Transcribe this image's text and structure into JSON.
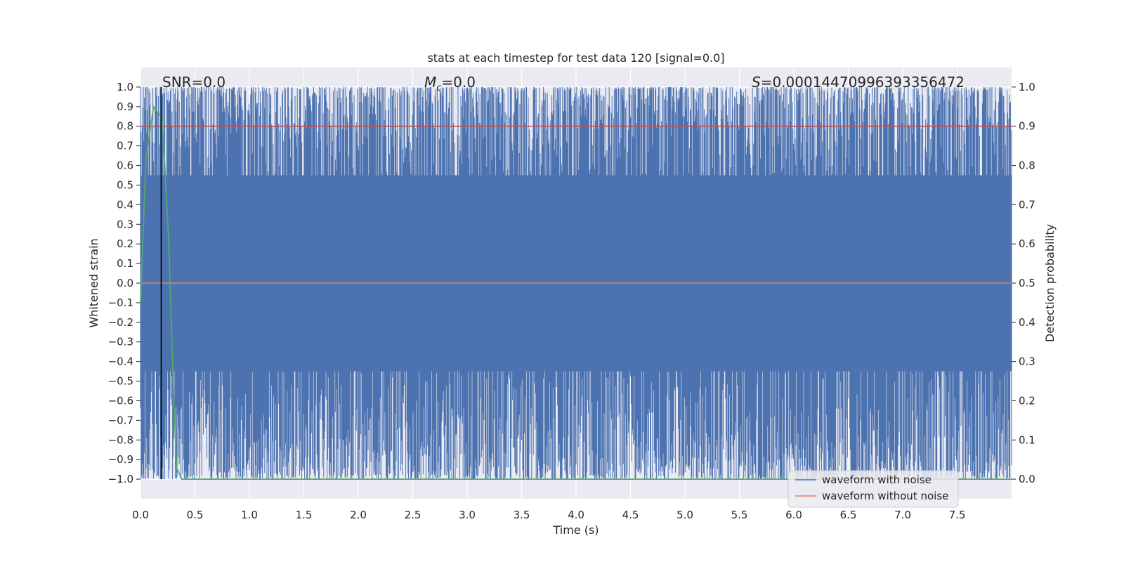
{
  "chart_data": {
    "type": "line",
    "title": "stats at each timestep for test data 120 [signal=0.0]",
    "xlabel": "Time (s)",
    "ylabel": "Whitened strain",
    "y2label": "Detection probability",
    "xlim": [
      0.0,
      8.0
    ],
    "ylim": [
      -1.1,
      1.1
    ],
    "y2lim": [
      -0.05,
      1.05
    ],
    "x_ticks": [
      "0.0",
      "0.5",
      "1.0",
      "1.5",
      "2.0",
      "2.5",
      "3.0",
      "3.5",
      "4.0",
      "4.5",
      "5.0",
      "5.5",
      "6.0",
      "6.5",
      "7.0",
      "7.5"
    ],
    "y_ticks": [
      "1.0",
      "0.9",
      "0.8",
      "0.7",
      "0.6",
      "0.5",
      "0.4",
      "0.3",
      "0.2",
      "0.1",
      "0.0",
      "−0.1",
      "−0.2",
      "−0.3",
      "−0.4",
      "−0.5",
      "−0.6",
      "−0.7",
      "−0.8",
      "−0.9",
      "−1.0"
    ],
    "y2_ticks": [
      "1.0",
      "0.9",
      "0.8",
      "0.7",
      "0.6",
      "0.5",
      "0.4",
      "0.3",
      "0.2",
      "0.1",
      "0.0"
    ],
    "grid": true,
    "legend_position": "lower-right",
    "annotations": {
      "snr": "SNR=0.0",
      "mc_symbol": "M",
      "mc_sub": "c",
      "mc_value": "=0.0",
      "s_symbol": "S",
      "s_value": "=0.00014470996393356472"
    },
    "marker_line_x": 0.19,
    "threshold_probability": 0.9,
    "series": [
      {
        "name": "waveform with noise",
        "color": "#4c72b0",
        "axis": "left",
        "range": [
          -1.0,
          1.0
        ]
      },
      {
        "name": "waveform without noise",
        "color": "#dd8452",
        "axis": "left",
        "values": [
          [
            0.0,
            0.0
          ],
          [
            8.0,
            0.0
          ]
        ]
      },
      {
        "color": "#55a868",
        "axis": "right",
        "values": [
          [
            0.0,
            0.45
          ],
          [
            0.05,
            0.82
          ],
          [
            0.12,
            0.95
          ],
          [
            0.2,
            0.92
          ],
          [
            0.26,
            0.6
          ],
          [
            0.3,
            0.25
          ],
          [
            0.33,
            0.03
          ],
          [
            0.38,
            0.0
          ],
          [
            1.0,
            0.0
          ],
          [
            8.0,
            0.0
          ]
        ]
      },
      {
        "color": "#c44e52",
        "axis": "right",
        "values": [
          [
            0.0,
            0.9
          ],
          [
            8.0,
            0.9
          ]
        ]
      }
    ]
  }
}
